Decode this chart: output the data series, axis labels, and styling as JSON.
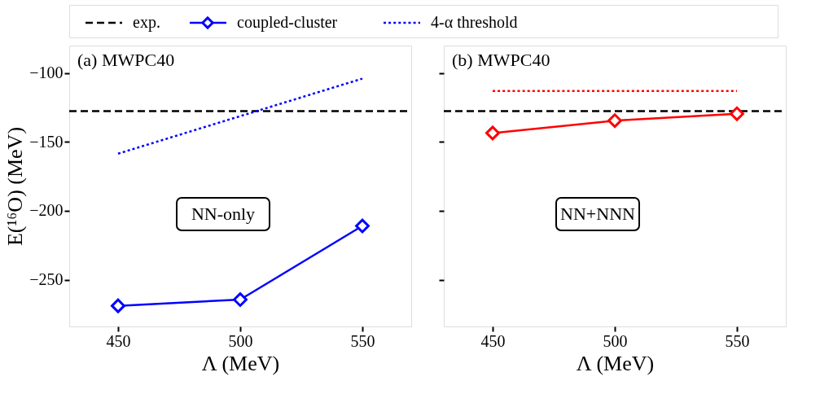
{
  "chart_data": [
    {
      "type": "line",
      "xlabel": "Λ (MeV)",
      "ylabel": "E(¹⁶O) (MeV)",
      "xlim": [
        430,
        570
      ],
      "ylim": [
        -284,
        -80
      ],
      "xticks": [
        450,
        500,
        550
      ],
      "yticks": [
        -100,
        -150,
        -200,
        -250
      ],
      "grid": false,
      "legend": "top",
      "annotations": [
        "(a) MWPC40",
        "NN-only"
      ],
      "series": [
        {
          "name": "exp.",
          "color": "#000000",
          "x": [
            430,
            570
          ],
          "values": [
            -127.6,
            -127.6
          ],
          "line_style": "dashed",
          "marker": "none"
        },
        {
          "name": "coupled-cluster",
          "color": "#0000ff",
          "x": [
            450,
            500,
            550
          ],
          "values": [
            -269,
            -264.5,
            -211
          ],
          "line_style": "solid",
          "marker": "diamond"
        },
        {
          "name": "4-α threshold",
          "color": "#0000ff",
          "x": [
            450,
            550
          ],
          "values": [
            -158.5,
            -104
          ],
          "line_style": "dotted",
          "marker": "none"
        }
      ]
    },
    {
      "type": "line",
      "xlabel": "Λ (MeV)",
      "xlim": [
        430,
        570
      ],
      "ylim": [
        -284,
        -80
      ],
      "xticks": [
        450,
        500,
        550
      ],
      "yticks": [
        -100,
        -150,
        -200,
        -250
      ],
      "grid": false,
      "tick_labels": "x",
      "annotations": [
        "(b) MWPC40",
        "NN+NNN"
      ],
      "series": [
        {
          "color": "#000000",
          "x": [
            430,
            570
          ],
          "values": [
            -127.6,
            -127.6
          ],
          "line_style": "dashed",
          "marker": "none"
        },
        {
          "color": "#ff0000",
          "x": [
            450,
            500,
            550
          ],
          "values": [
            -143.5,
            -134.5,
            -129.5
          ],
          "line_style": "solid",
          "marker": "diamond"
        },
        {
          "color": "#ff0000",
          "x": [
            450,
            550
          ],
          "values": [
            -113,
            -113
          ],
          "line_style": "dotted",
          "marker": "none"
        }
      ]
    }
  ]
}
